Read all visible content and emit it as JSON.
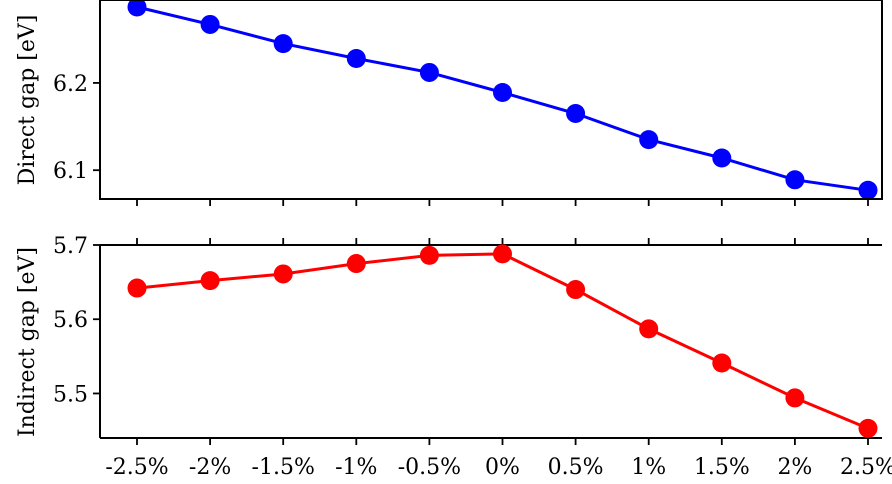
{
  "chart_data": [
    {
      "type": "line",
      "categories": [
        "-2.5%",
        "-2%",
        "-1.5%",
        "-1%",
        "-0.5%",
        "0%",
        "0.5%",
        "1%",
        "1.5%",
        "2%",
        "2.5%"
      ],
      "series": [
        {
          "values": [
            6.287,
            6.267,
            6.245,
            6.228,
            6.212,
            6.189,
            6.165,
            6.135,
            6.114,
            6.089,
            6.077
          ],
          "color": "#0000ff"
        }
      ],
      "ylabel": "Direct gap [eV]",
      "yticks": [
        "6.1",
        "6.2"
      ],
      "ylim": [
        6.067,
        6.295
      ],
      "xticks_labels_shown": false
    },
    {
      "type": "line",
      "categories": [
        "-2.5%",
        "-2%",
        "-1.5%",
        "-1%",
        "-0.5%",
        "0%",
        "0.5%",
        "1%",
        "1.5%",
        "2%",
        "2.5%"
      ],
      "series": [
        {
          "values": [
            5.642,
            5.652,
            5.661,
            5.675,
            5.686,
            5.688,
            5.64,
            5.587,
            5.541,
            5.494,
            5.453
          ],
          "color": "#ff0000"
        }
      ],
      "ylabel": "Indirect gap [eV]",
      "yticks": [
        "5.5",
        "5.6",
        "5.7"
      ],
      "ylim": [
        5.44,
        5.7
      ],
      "xticks_labels_shown": true
    }
  ]
}
